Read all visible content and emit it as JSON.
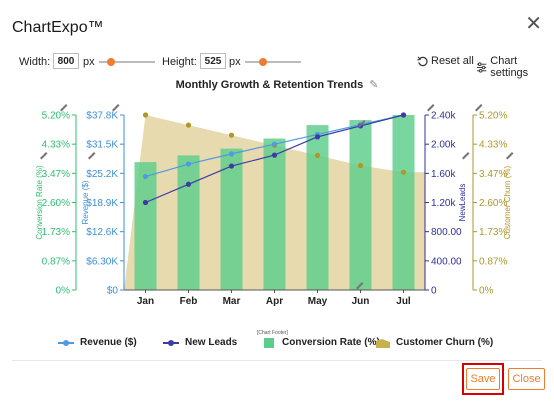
{
  "app": {
    "title": "ChartExpo™"
  },
  "toolbar": {
    "width_label": "Width:",
    "width_value": "800",
    "width_unit": "px",
    "height_label": "Height:",
    "height_value": "525",
    "height_unit": "px",
    "reset_label": "Reset all",
    "settings_label": "Chart settings"
  },
  "footer": {
    "save_label": "Save",
    "close_label": "Close",
    "chart_footer_label": "[Chart Footer]"
  },
  "colors": {
    "accent": "#ee7d31",
    "revenue": "#4d9be0",
    "leads": "#3c3ca8",
    "conversion": "#5ccd8a",
    "churn": "#d8c27a",
    "churn_axis": "#b19628",
    "conversion_axis": "#2fbf71",
    "revenue_axis": "#3d8fdb",
    "leads_axis": "#3030a0",
    "highlight": "#d60000"
  },
  "chart_data": {
    "type": "bar",
    "title": "Monthly Growth & Retention Trends",
    "categories": [
      "Jan",
      "Feb",
      "Mar",
      "Apr",
      "May",
      "Jun",
      "Jul"
    ],
    "axes": {
      "left_outer": {
        "label": "Conversion Rate (%)",
        "ticks": [
          "0%",
          "0.87%",
          "1.73%",
          "2.60%",
          "3.47%",
          "4.33%",
          "5.20%"
        ],
        "range": [
          0,
          5.2
        ]
      },
      "left_inner": {
        "label": "Revenue ($)",
        "ticks": [
          "$0",
          "$6.30K",
          "$12.6K",
          "$18.9K",
          "$25.2K",
          "$31.5K",
          "$37.8K"
        ],
        "range": [
          0,
          37.8
        ]
      },
      "right_inner": {
        "label": "NewLeads",
        "ticks": [
          "0",
          "400.00",
          "800.00",
          "1.20k",
          "1.60k",
          "2.00k",
          "2.40k"
        ],
        "range": [
          0,
          2400
        ]
      },
      "right_outer": {
        "label": "Customer Churn (%)",
        "ticks": [
          "0%",
          "0.87%",
          "1.73%",
          "2.60%",
          "3.47%",
          "4.33%",
          "5.20%"
        ],
        "range": [
          0,
          5.2
        ]
      }
    },
    "series": [
      {
        "name": "Revenue ($)",
        "kind": "line",
        "axis": "left_inner",
        "values": [
          24.5,
          27.2,
          29.4,
          31.5,
          33.6,
          35.7,
          37.8
        ]
      },
      {
        "name": "New Leads",
        "kind": "line",
        "axis": "right_inner",
        "values": [
          1200,
          1450,
          1700,
          1850,
          2100,
          2250,
          2400
        ]
      },
      {
        "name": "Conversion Rate (%)",
        "kind": "bar",
        "axis": "left_outer",
        "values": [
          3.8,
          4.0,
          4.2,
          4.5,
          4.9,
          5.05,
          5.2
        ]
      },
      {
        "name": "Customer Churn (%)",
        "kind": "area",
        "axis": "right_outer",
        "values": [
          5.2,
          4.9,
          4.6,
          4.3,
          4.0,
          3.7,
          3.5
        ]
      }
    ],
    "legend_position": "bottom",
    "grid": false
  }
}
